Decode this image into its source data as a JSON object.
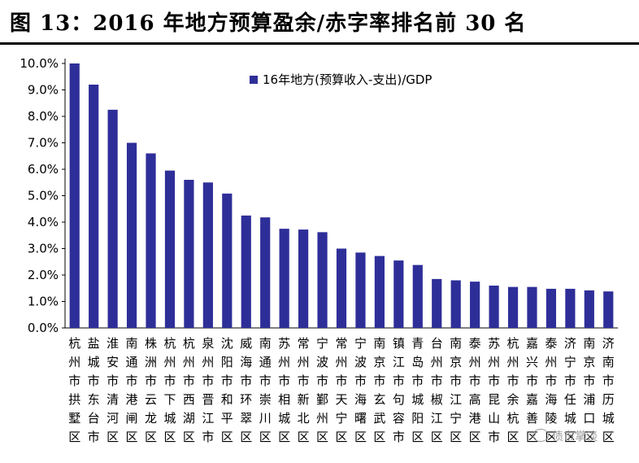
{
  "title": "图 13：2016 年地方预算盈余/赤字率排名前 30 名",
  "watermark": {
    "icon": "wechat-icon",
    "text": "债市掌谈"
  },
  "chart_data": {
    "type": "bar",
    "series": [
      {
        "name": "16年地方(预算收入-支出)/GDP",
        "color": "#2e2e99",
        "values": [
          10.0,
          9.2,
          8.25,
          7.0,
          6.6,
          5.95,
          5.6,
          5.5,
          5.08,
          4.25,
          4.18,
          3.75,
          3.72,
          3.62,
          3.0,
          2.85,
          2.72,
          2.55,
          2.38,
          1.85,
          1.8,
          1.75,
          1.6,
          1.55,
          1.55,
          1.48,
          1.48,
          1.42,
          1.38
        ]
      }
    ],
    "categories": [
      "杭州市拱墅区",
      "盐城市东台市",
      "淮安市清河区",
      "南通市港闸区",
      "株洲市云龙区",
      "杭州市下城区",
      "杭州市西湖区",
      "泉州市晋江市",
      "沈阳市和平区",
      "威海市环翠区",
      "南通市崇川区",
      "苏州市相城区",
      "常州市新北区",
      "宁波市鄞州区",
      "常州市天宁区",
      "宁波市海曙区",
      "南京市玄武区",
      "镇江市句容市",
      "青岛市城阳区",
      "台州市椒江区",
      "南京市江宁区",
      "泰州市高港区",
      "苏州市昆山市",
      "杭州市余杭区",
      "嘉兴市嘉善区",
      "泰州市海陵区",
      "济宁市任城区",
      "南京市浦口区",
      "济南市历城区"
    ],
    "yticks": [
      "0.0%",
      "1.0%",
      "2.0%",
      "3.0%",
      "4.0%",
      "5.0%",
      "6.0%",
      "7.0%",
      "8.0%",
      "9.0%",
      "10.0%"
    ],
    "ylim": [
      0,
      10
    ],
    "legend": "top-right",
    "grid": false
  }
}
